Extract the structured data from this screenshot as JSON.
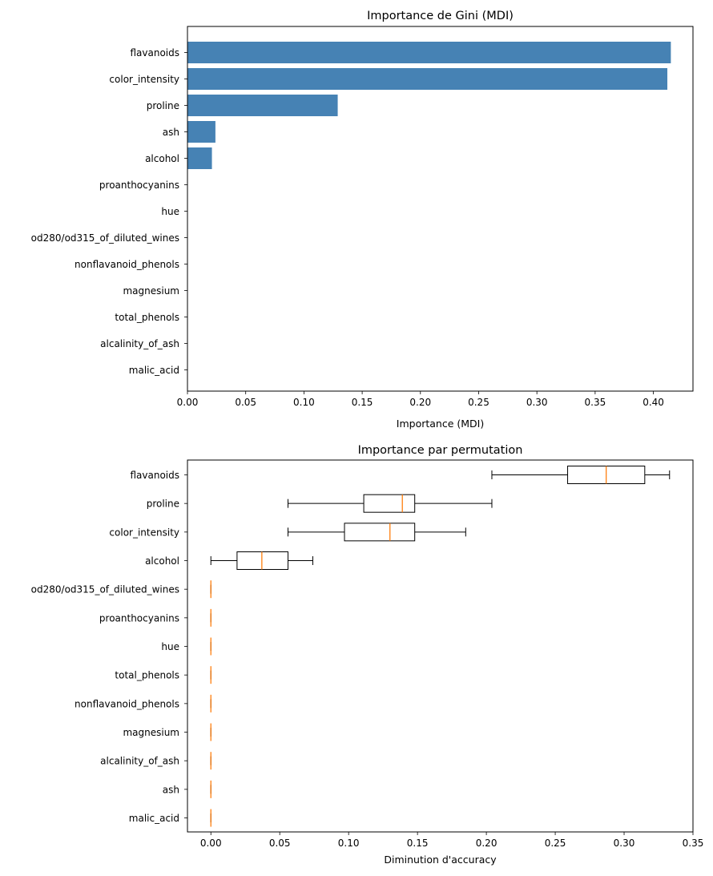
{
  "chart_data": [
    {
      "type": "bar",
      "orientation": "horizontal",
      "title": "Importance de Gini (MDI)",
      "xlabel": "Importance (MDI)",
      "ylabel": "",
      "xlim": [
        0,
        0.434
      ],
      "xticks": [
        "0.00",
        "0.05",
        "0.10",
        "0.15",
        "0.20",
        "0.25",
        "0.30",
        "0.35",
        "0.40"
      ],
      "grid": false,
      "bar_color": "#4682b4",
      "categories": [
        "flavanoids",
        "color_intensity",
        "proline",
        "ash",
        "alcohol",
        "proanthocyanins",
        "hue",
        "od280/od315_of_diluted_wines",
        "nonflavanoid_phenols",
        "magnesium",
        "total_phenols",
        "alcalinity_of_ash",
        "malic_acid"
      ],
      "values": [
        0.415,
        0.412,
        0.129,
        0.024,
        0.021,
        0,
        0,
        0,
        0,
        0,
        0,
        0,
        0
      ]
    },
    {
      "type": "box",
      "orientation": "horizontal",
      "title": "Importance par permutation",
      "xlabel": "Diminution d'accuracy",
      "ylabel": "",
      "xlim": [
        -0.017,
        0.35
      ],
      "xticks": [
        "0.00",
        "0.05",
        "0.10",
        "0.15",
        "0.20",
        "0.25",
        "0.30",
        "0.35"
      ],
      "grid": false,
      "median_color": "#ff7f0e",
      "categories": [
        "flavanoids",
        "proline",
        "color_intensity",
        "alcohol",
        "od280/od315_of_diluted_wines",
        "proanthocyanins",
        "hue",
        "total_phenols",
        "nonflavanoid_phenols",
        "magnesium",
        "alcalinity_of_ash",
        "ash",
        "malic_acid"
      ],
      "boxes": [
        {
          "whislo": 0.204,
          "q1": 0.259,
          "med": 0.287,
          "q3": 0.315,
          "whishi": 0.333
        },
        {
          "whislo": 0.056,
          "q1": 0.111,
          "med": 0.139,
          "q3": 0.148,
          "whishi": 0.204
        },
        {
          "whislo": 0.056,
          "q1": 0.097,
          "med": 0.13,
          "q3": 0.148,
          "whishi": 0.185
        },
        {
          "whislo": 0.0,
          "q1": 0.019,
          "med": 0.037,
          "q3": 0.056,
          "whishi": 0.074
        },
        {
          "whislo": 0,
          "q1": 0,
          "med": 0,
          "q3": 0,
          "whishi": 0
        },
        {
          "whislo": 0,
          "q1": 0,
          "med": 0,
          "q3": 0,
          "whishi": 0
        },
        {
          "whislo": 0,
          "q1": 0,
          "med": 0,
          "q3": 0,
          "whishi": 0
        },
        {
          "whislo": 0,
          "q1": 0,
          "med": 0,
          "q3": 0,
          "whishi": 0
        },
        {
          "whislo": 0,
          "q1": 0,
          "med": 0,
          "q3": 0,
          "whishi": 0
        },
        {
          "whislo": 0,
          "q1": 0,
          "med": 0,
          "q3": 0,
          "whishi": 0
        },
        {
          "whislo": 0,
          "q1": 0,
          "med": 0,
          "q3": 0,
          "whishi": 0
        },
        {
          "whislo": 0,
          "q1": 0,
          "med": 0,
          "q3": 0,
          "whishi": 0
        },
        {
          "whislo": 0,
          "q1": 0,
          "med": 0,
          "q3": 0,
          "whishi": 0
        }
      ]
    }
  ]
}
